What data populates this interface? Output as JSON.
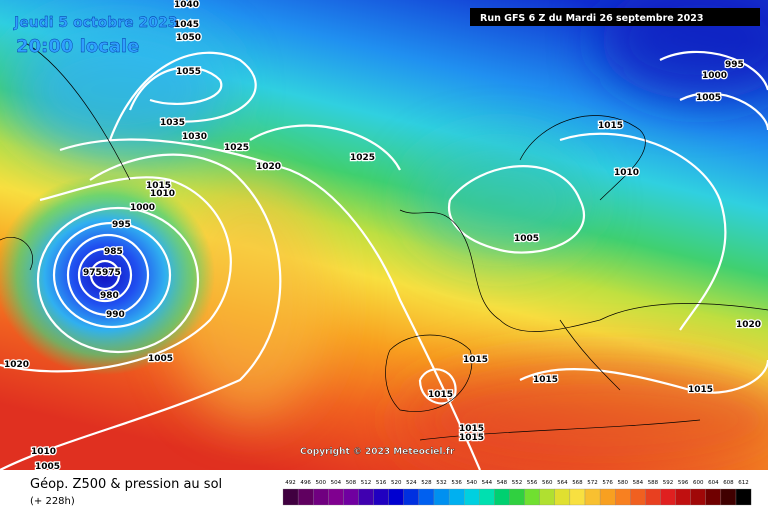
{
  "header": {
    "date": "Jeudi 5 octobre 2023",
    "time": "20:00 locale",
    "run": "Run GFS 6 Z du Mardi 26 septembre 2023"
  },
  "copyright": "Copyright © 2023 Meteociel.fr",
  "footer": {
    "title": "Géop. Z500 & pression au sol",
    "lead": "(+ 228h)"
  },
  "legend": {
    "scale": [
      492,
      496,
      500,
      504,
      508,
      512,
      516,
      520,
      524,
      528,
      532,
      536,
      540,
      544,
      548,
      552,
      556,
      560,
      564,
      568,
      572,
      576,
      580,
      584,
      588,
      592,
      596,
      600,
      604,
      608,
      612
    ]
  },
  "isobars": [
    "1040",
    "1045",
    "1050",
    "1055",
    "1035",
    "1030",
    "1025",
    "1020",
    "1025",
    "1015",
    "1010",
    "1000",
    "995",
    "985",
    "975",
    "975",
    "980",
    "990",
    "1005",
    "1020",
    "1010",
    "1005",
    "995",
    "1000",
    "1005",
    "1015",
    "1010",
    "1005",
    "1020",
    "1015",
    "1015",
    "1015",
    "1015",
    "1015",
    "1015"
  ]
}
